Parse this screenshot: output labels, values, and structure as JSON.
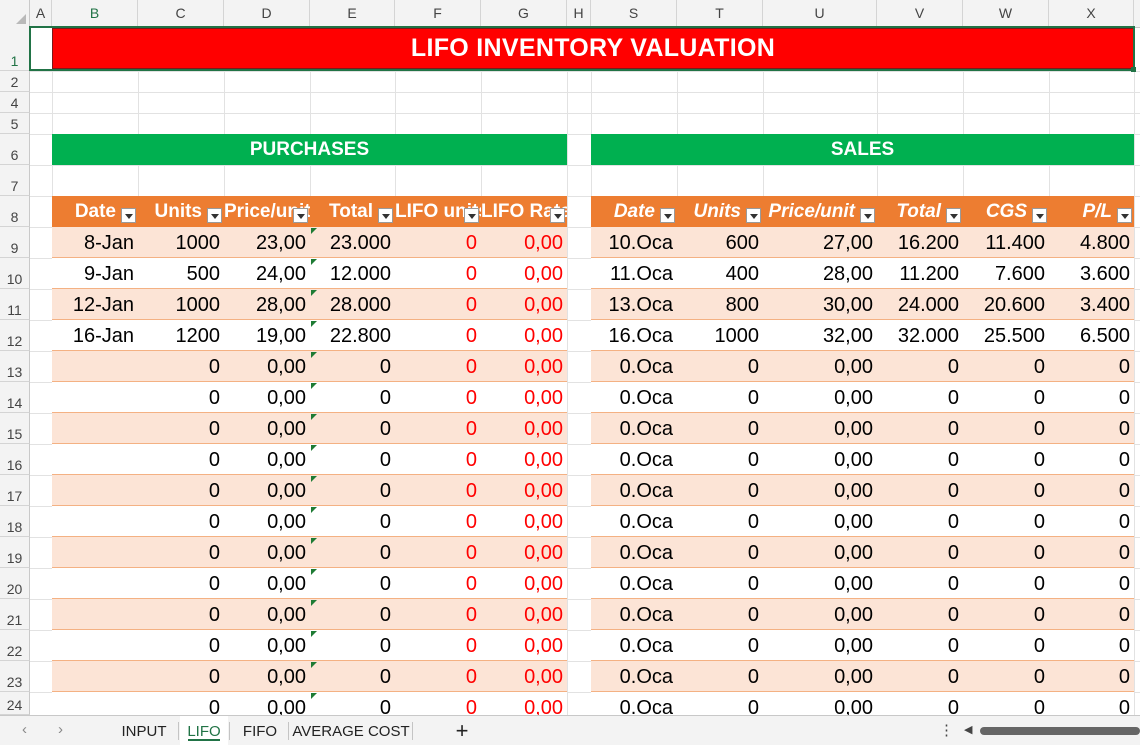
{
  "columns": [
    "A",
    "B",
    "C",
    "D",
    "E",
    "F",
    "G",
    "H",
    "S",
    "T",
    "U",
    "V",
    "W",
    "X"
  ],
  "rows": [
    "1",
    "2",
    "4",
    "5",
    "6",
    "7",
    "8",
    "9",
    "10",
    "11",
    "12",
    "13",
    "14",
    "15",
    "16",
    "17",
    "18",
    "19",
    "20",
    "21",
    "22",
    "23",
    "24"
  ],
  "title": "LIFO INVENTORY VALUATION",
  "purchases": {
    "heading": "PURCHASES",
    "headers": [
      "Date",
      "Units",
      "Price/unit",
      "Total",
      "LIFO units",
      "LIFO Rate"
    ],
    "rows": [
      [
        "8-Jan",
        "1000",
        "23,00",
        "23.000",
        "0",
        "0,00"
      ],
      [
        "9-Jan",
        "500",
        "24,00",
        "12.000",
        "0",
        "0,00"
      ],
      [
        "12-Jan",
        "1000",
        "28,00",
        "28.000",
        "0",
        "0,00"
      ],
      [
        "16-Jan",
        "1200",
        "19,00",
        "22.800",
        "0",
        "0,00"
      ],
      [
        "",
        "0",
        "0,00",
        "0",
        "0",
        "0,00"
      ],
      [
        "",
        "0",
        "0,00",
        "0",
        "0",
        "0,00"
      ],
      [
        "",
        "0",
        "0,00",
        "0",
        "0",
        "0,00"
      ],
      [
        "",
        "0",
        "0,00",
        "0",
        "0",
        "0,00"
      ],
      [
        "",
        "0",
        "0,00",
        "0",
        "0",
        "0,00"
      ],
      [
        "",
        "0",
        "0,00",
        "0",
        "0",
        "0,00"
      ],
      [
        "",
        "0",
        "0,00",
        "0",
        "0",
        "0,00"
      ],
      [
        "",
        "0",
        "0,00",
        "0",
        "0",
        "0,00"
      ],
      [
        "",
        "0",
        "0,00",
        "0",
        "0",
        "0,00"
      ],
      [
        "",
        "0",
        "0,00",
        "0",
        "0",
        "0,00"
      ],
      [
        "",
        "0",
        "0,00",
        "0",
        "0",
        "0,00"
      ],
      [
        "",
        "0",
        "0,00",
        "0",
        "0",
        "0,00"
      ]
    ]
  },
  "sales": {
    "heading": "SALES",
    "headers": [
      "Date",
      "Units",
      "Price/unit",
      "Total",
      "CGS",
      "P/L"
    ],
    "rows": [
      [
        "10.Oca",
        "600",
        "27,00",
        "16.200",
        "11.400",
        "4.800"
      ],
      [
        "11.Oca",
        "400",
        "28,00",
        "11.200",
        "7.600",
        "3.600"
      ],
      [
        "13.Oca",
        "800",
        "30,00",
        "24.000",
        "20.600",
        "3.400"
      ],
      [
        "16.Oca",
        "1000",
        "32,00",
        "32.000",
        "25.500",
        "6.500"
      ],
      [
        "0.Oca",
        "0",
        "0,00",
        "0",
        "0",
        "0"
      ],
      [
        "0.Oca",
        "0",
        "0,00",
        "0",
        "0",
        "0"
      ],
      [
        "0.Oca",
        "0",
        "0,00",
        "0",
        "0",
        "0"
      ],
      [
        "0.Oca",
        "0",
        "0,00",
        "0",
        "0",
        "0"
      ],
      [
        "0.Oca",
        "0",
        "0,00",
        "0",
        "0",
        "0"
      ],
      [
        "0.Oca",
        "0",
        "0,00",
        "0",
        "0",
        "0"
      ],
      [
        "0.Oca",
        "0",
        "0,00",
        "0",
        "0",
        "0"
      ],
      [
        "0.Oca",
        "0",
        "0,00",
        "0",
        "0",
        "0"
      ],
      [
        "0.Oca",
        "0",
        "0,00",
        "0",
        "0",
        "0"
      ],
      [
        "0.Oca",
        "0",
        "0,00",
        "0",
        "0",
        "0"
      ],
      [
        "0.Oca",
        "0",
        "0,00",
        "0",
        "0",
        "0"
      ],
      [
        "0.Oca",
        "0",
        "0,00",
        "0",
        "0",
        "0"
      ]
    ]
  },
  "sheet_tabs": [
    "INPUT",
    "LIFO",
    "FIFO",
    "AVERAGE COST"
  ],
  "active_tab": "LIFO",
  "add_sheet": "+",
  "nav_prev": "‹",
  "nav_next": "›",
  "more": "⋮",
  "colors": {
    "title_bg": "#ff0000",
    "section_bg": "#00b050",
    "header_bg": "#ed7d31",
    "band_bg": "#fce4d6",
    "red_text": "#ff0000",
    "excel_green": "#217346"
  }
}
